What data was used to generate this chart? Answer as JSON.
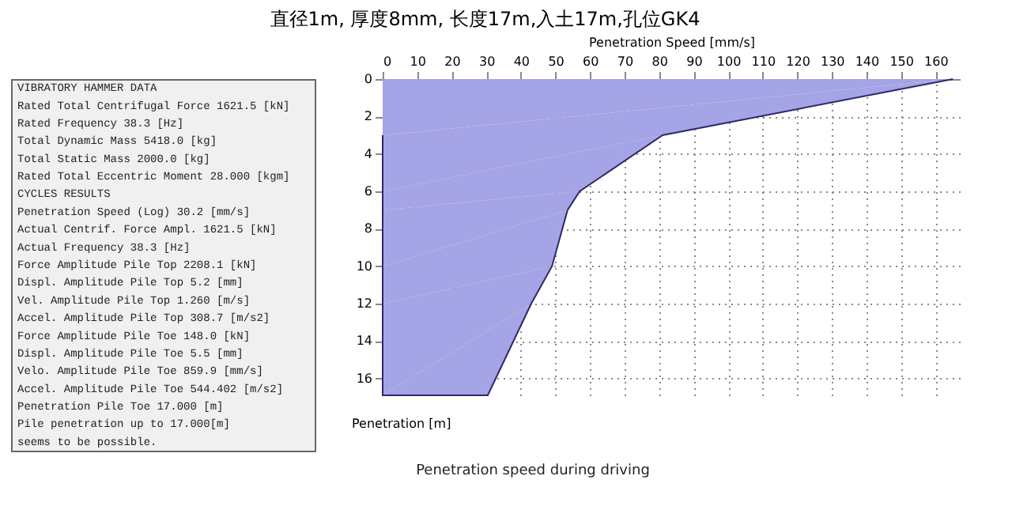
{
  "chart_data": [
    {
      "type": "other",
      "annotations": [
        "VIBRATORY HAMMER DATA",
        "Rated Total Centrifugal Force 1621.5 [kN]",
        "Rated Frequency 38.3 [Hz]",
        "Total Dynamic Mass 5418.0 [kg]",
        "Total Static Mass 2000.0 [kg]",
        "Rated Total Eccentric Moment 28.000 [kgm]",
        "CYCLES RESULTS",
        "Penetration Speed (Log) 30.2 [mm/s]",
        "Actual Centrif. Force Ampl. 1621.5 [kN]",
        "Actual Frequency 38.3 [Hz]",
        "Force Amplitude Pile Top 2208.1 [kN]",
        "Displ. Amplitude Pile Top 5.2 [mm]",
        "Vel. Amplitude Pile Top 1.260 [m/s]",
        "Accel. Amplitude Pile Top 308.7 [m/s2]",
        "Force Amplitude Pile Toe 148.0 [kN]",
        "Displ. Amplitude Pile Toe 5.5 [mm]",
        "Velo. Amplitude Pile Toe 859.9 [mm/s]",
        "Accel. Amplitude Pile Toe 544.402 [m/s2]",
        "Penetration Pile Toe 17.000 [m]",
        "Pile penetration up to 17.000[m]",
        "seems to be possible."
      ]
    },
    {
      "type": "area",
      "orientation": "horizontal",
      "title": "直径1m, 厚度8mm, 长度17m,入土17m,孔位GK4",
      "xlabel": "Penetration Speed [mm/s]",
      "ylabel": "Penetration [m]",
      "x": [
        0,
        3,
        6,
        7,
        10,
        12,
        16.9
      ],
      "values": [
        165,
        81,
        57,
        53.5,
        49,
        43,
        30.4
      ],
      "color": "#a4a4e6",
      "xlim": [
        0,
        167
      ],
      "xticks": [
        0,
        10,
        20,
        30,
        40,
        50,
        60,
        70,
        80,
        90,
        100,
        110,
        120,
        130,
        140,
        150,
        160
      ],
      "ylim": [
        16.9,
        0
      ],
      "yticks": [
        0,
        2,
        4,
        6,
        8,
        10,
        12,
        14,
        16
      ],
      "grid": true,
      "marker": "none",
      "line_style": "solid",
      "annotations": [
        "Penetration speed during driving"
      ]
    }
  ]
}
